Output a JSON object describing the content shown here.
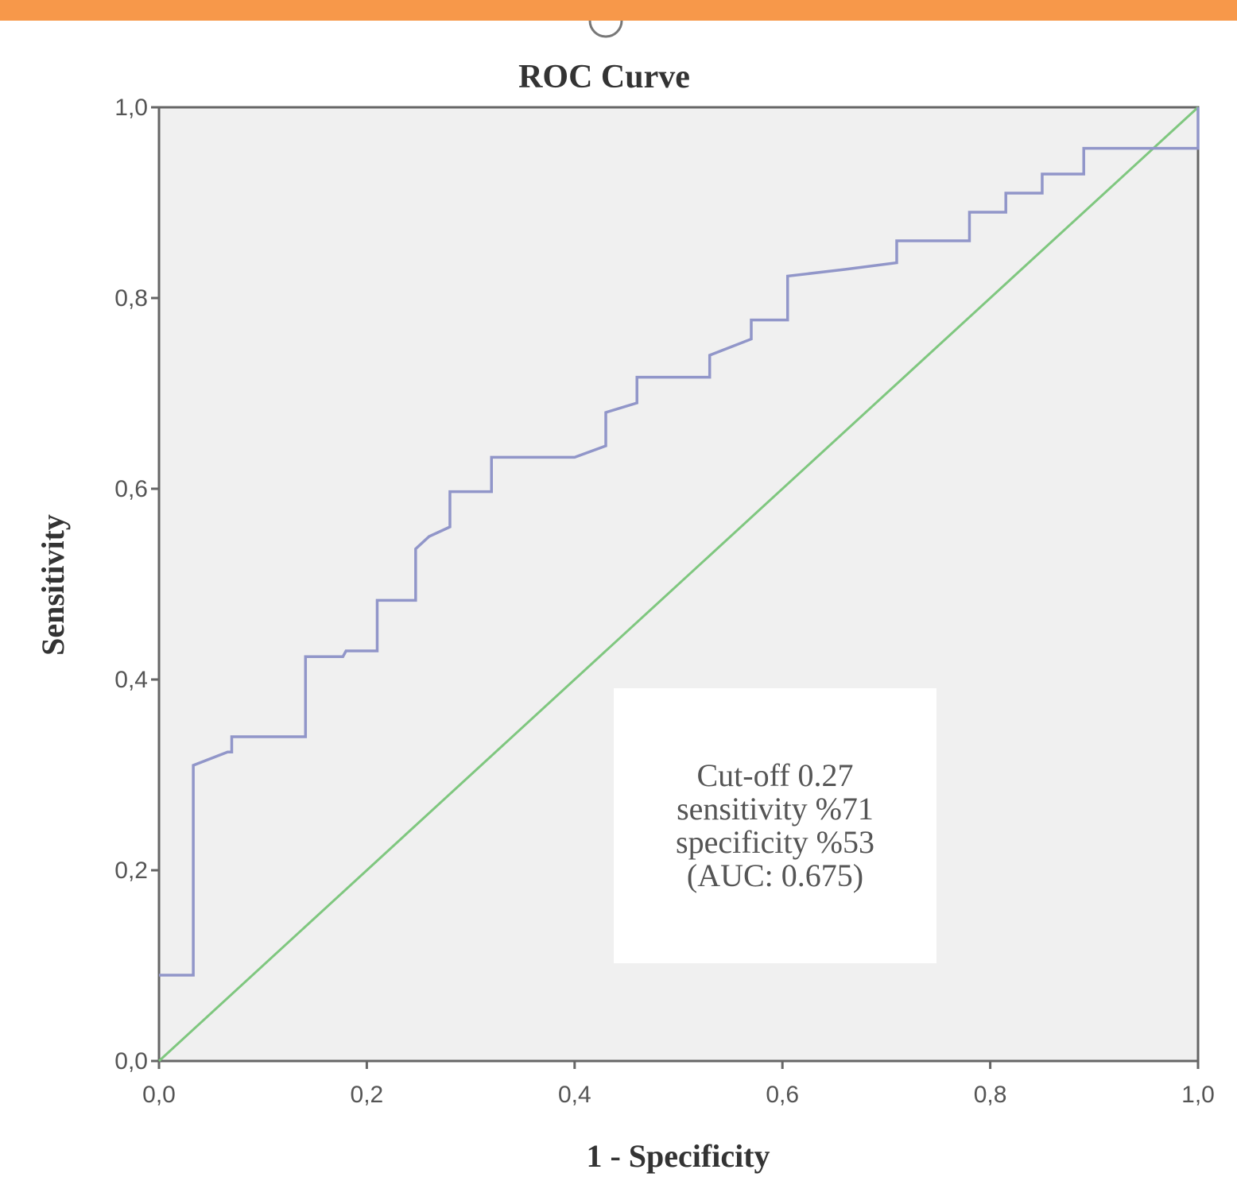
{
  "colors": {
    "top_bar": "#f7984a",
    "plot_background": "#f0f0f0",
    "roc_curve": "#9196c9",
    "reference_line": "#7fc77f",
    "axis": "#666666"
  },
  "chart_data": {
    "type": "line",
    "title": "ROC Curve",
    "xlabel": "1 - Specificity",
    "ylabel": "Sensitivity",
    "xlim": [
      0,
      1
    ],
    "ylim": [
      0,
      1
    ],
    "x_ticks": [
      "0,0",
      "0,2",
      "0,4",
      "0,6",
      "0,8",
      "1,0"
    ],
    "y_ticks": [
      "0,0",
      "0,2",
      "0,4",
      "0,6",
      "0,8",
      "1,0"
    ],
    "grid": false,
    "legend": "none",
    "series": [
      {
        "role": "roc",
        "x": [
          0,
          0.033,
          0.033,
          0.066,
          0.07,
          0.07,
          0.141,
          0.141,
          0.177,
          0.18,
          0.21,
          0.21,
          0.247,
          0.247,
          0.26,
          0.28,
          0.28,
          0.32,
          0.32,
          0.365,
          0.39,
          0.4,
          0.43,
          0.43,
          0.46,
          0.46,
          0.53,
          0.53,
          0.57,
          0.57,
          0.605,
          0.605,
          0.66,
          0.71,
          0.71,
          0.78,
          0.78,
          0.815,
          0.815,
          0.85,
          0.85,
          0.89,
          0.89,
          1.0,
          1.0
        ],
        "y": [
          0.09,
          0.09,
          0.31,
          0.324,
          0.324,
          0.34,
          0.34,
          0.424,
          0.424,
          0.43,
          0.43,
          0.483,
          0.483,
          0.537,
          0.55,
          0.56,
          0.597,
          0.597,
          0.633,
          0.633,
          0.633,
          0.633,
          0.645,
          0.68,
          0.69,
          0.717,
          0.717,
          0.74,
          0.757,
          0.777,
          0.777,
          0.823,
          0.83,
          0.837,
          0.86,
          0.86,
          0.89,
          0.89,
          0.91,
          0.91,
          0.93,
          0.93,
          0.957,
          0.957,
          1.0
        ]
      },
      {
        "role": "reference",
        "x": [
          0,
          1
        ],
        "y": [
          0,
          1
        ]
      }
    ],
    "annotation": {
      "lines": [
        "Cut-off 0.27",
        "sensitivity %71",
        "specificity %53",
        "(AUC: 0.675)"
      ],
      "position": "bottom-right"
    }
  }
}
